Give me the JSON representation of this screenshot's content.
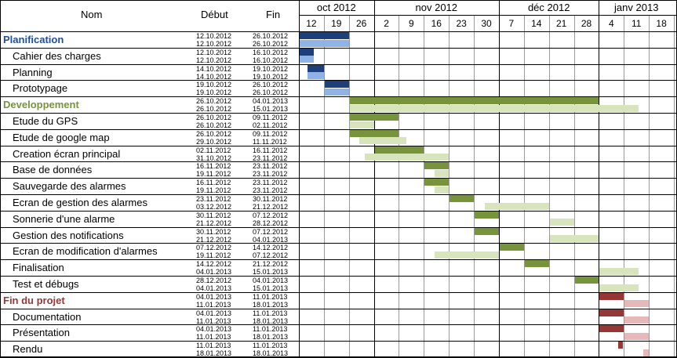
{
  "header": {
    "name": "Nom",
    "start": "Début",
    "end": "Fin"
  },
  "months": [
    {
      "label": "oct 2012",
      "from": 0,
      "to": 2
    },
    {
      "label": "nov 2012",
      "from": 3,
      "to": 7
    },
    {
      "label": "déc 2012",
      "from": 8,
      "to": 11
    },
    {
      "label": "janv 2013",
      "from": 12,
      "to": 14
    }
  ],
  "weeks": [
    "12",
    "19",
    "26",
    "2",
    "9",
    "16",
    "23",
    "30",
    "7",
    "14",
    "21",
    "28",
    "4",
    "11",
    "18"
  ],
  "colors": {
    "blue_dark": "#1F3F7A",
    "blue_light": "#8FB3E6",
    "green_dark": "#77933C",
    "green_light": "#D8E4BC",
    "red_dark": "#953735",
    "red_light": "#E6B9B8",
    "planif_text": "#1F4E99",
    "dev_text": "#77933C",
    "fin_text": "#953735"
  },
  "tasks": [
    {
      "name": "Planification",
      "group": true,
      "color": "blue",
      "start1": "12.10.2012",
      "end1": "26.10.2012",
      "start2": "12.10.2012",
      "end2": "26.10.2012",
      "bar1": [
        0,
        2
      ],
      "bar2": [
        0,
        2
      ]
    },
    {
      "name": "Cahier des charges",
      "group": false,
      "color": "blue",
      "start1": "12.10.2012",
      "end1": "16.10.2012",
      "start2": "12.10.2012",
      "end2": "16.10.2012",
      "bar1": [
        0,
        0.6
      ],
      "bar2": [
        0,
        0.6
      ]
    },
    {
      "name": "Planning",
      "group": false,
      "color": "blue",
      "start1": "14.10.2012",
      "end1": "19.10.2012",
      "start2": "14.10.2012",
      "end2": "19.10.2012",
      "bar1": [
        0.3,
        1
      ],
      "bar2": [
        0.3,
        1
      ]
    },
    {
      "name": "Prototypage",
      "group": false,
      "color": "blue",
      "start1": "19.10.2012",
      "end1": "26.10.2012",
      "start2": "19.10.2012",
      "end2": "26.10.2012",
      "bar1": [
        1,
        2
      ],
      "bar2": [
        1,
        2
      ]
    },
    {
      "name": "Developpement",
      "group": true,
      "color": "green",
      "start1": "26.10.2012",
      "end1": "04.01.2013",
      "start2": "26.10.2012",
      "end2": "15.01.2013",
      "bar1": [
        2,
        12
      ],
      "bar2": [
        2,
        13.6
      ]
    },
    {
      "name": "Etude du GPS",
      "group": false,
      "color": "green",
      "start1": "26.10.2012",
      "end1": "09.11.2012",
      "start2": "26.10.2012",
      "end2": "02.11.2012",
      "bar1": [
        2,
        4
      ],
      "bar2": [
        2,
        3
      ]
    },
    {
      "name": "Etude de google map",
      "group": false,
      "color": "green",
      "start1": "26.10.2012",
      "end1": "09.11.2012",
      "start2": "29.10.2012",
      "end2": "11.11.2012",
      "bar1": [
        2,
        4
      ],
      "bar2": [
        2.4,
        4.3
      ]
    },
    {
      "name": "Creation écran principal",
      "group": false,
      "color": "green",
      "start1": "02.11.2012",
      "end1": "16.11.2012",
      "start2": "31.10.2012",
      "end2": "23.11.2012",
      "bar1": [
        3,
        5
      ],
      "bar2": [
        2.6,
        6
      ]
    },
    {
      "name": "Base de données",
      "group": false,
      "color": "green",
      "start1": "16.11.2012",
      "end1": "23.11.2012",
      "start2": "19.11.2012",
      "end2": "23.11.2012",
      "bar1": [
        5,
        6
      ],
      "bar2": [
        5.4,
        6
      ]
    },
    {
      "name": "Sauvegarde des alarmes",
      "group": false,
      "color": "green",
      "start1": "16.11.2012",
      "end1": "23.11.2012",
      "start2": "19.11.2012",
      "end2": "23.11.2012",
      "bar1": [
        5,
        6
      ],
      "bar2": [
        5.4,
        6
      ]
    },
    {
      "name": "Ecran de gestion des alarmes",
      "group": false,
      "color": "green",
      "start1": "23.11.2012",
      "end1": "30.11.2012",
      "start2": "03.12.2012",
      "end2": "21.12.2012",
      "bar1": [
        6,
        7
      ],
      "bar2": [
        7.4,
        10
      ]
    },
    {
      "name": "Sonnerie d'une alarme",
      "group": false,
      "color": "green",
      "start1": "30.11.2012",
      "end1": "07.12.2012",
      "start2": "21.12.2012",
      "end2": "28.12.2012",
      "bar1": [
        7,
        8
      ],
      "bar2": [
        10,
        11
      ]
    },
    {
      "name": "Gestion des notifications",
      "group": false,
      "color": "green",
      "start1": "30.11.2012",
      "end1": "07.12.2012",
      "start2": "21.12.2012",
      "end2": "04.01.2013",
      "bar1": [
        7,
        8
      ],
      "bar2": [
        10,
        12
      ]
    },
    {
      "name": "Ecran de modification d'alarmes",
      "group": false,
      "color": "green",
      "start1": "07.12.2012",
      "end1": "14.12.2012",
      "start2": "19.11.2012",
      "end2": "07.12.2012",
      "bar1": [
        8,
        9
      ],
      "bar2": [
        5.4,
        8
      ]
    },
    {
      "name": "Finalisation",
      "group": false,
      "color": "green",
      "start1": "14.12.2012",
      "end1": "21.12.2012",
      "start2": "04.01.2013",
      "end2": "15.01.2013",
      "bar1": [
        9,
        10
      ],
      "bar2": [
        12,
        13.6
      ]
    },
    {
      "name": "Test et débugs",
      "group": false,
      "color": "green",
      "start1": "28.12.2012",
      "end1": "04.01.2013",
      "start2": "04.01.2013",
      "end2": "15.01.2013",
      "bar1": [
        11,
        12
      ],
      "bar2": [
        12,
        13.6
      ]
    },
    {
      "name": "Fin du projet",
      "group": true,
      "color": "red",
      "start1": "04.01.2013",
      "end1": "11.01.2013",
      "start2": "11.01.2013",
      "end2": "18.01.2013",
      "bar1": [
        12,
        13
      ],
      "bar2": [
        13,
        14
      ]
    },
    {
      "name": "Documentation",
      "group": false,
      "color": "red",
      "start1": "04.01.2013",
      "end1": "11.01.2013",
      "start2": "11.01.2013",
      "end2": "18.01.2013",
      "bar1": [
        12,
        13
      ],
      "bar2": [
        13,
        14
      ]
    },
    {
      "name": "Présentation",
      "group": false,
      "color": "red",
      "start1": "04.01.2013",
      "end1": "11.01.2013",
      "start2": "11.01.2013",
      "end2": "18.01.2013",
      "bar1": [
        12,
        13
      ],
      "bar2": [
        13,
        14
      ]
    },
    {
      "name": "Rendu",
      "group": false,
      "color": "red",
      "start1": "11.01.2013",
      "end1": "11.01.2013",
      "start2": "18.01.2013",
      "end2": "18.01.2013",
      "bar1": [
        12.75,
        12.95
      ],
      "bar2": [
        13.75,
        14
      ]
    }
  ]
}
